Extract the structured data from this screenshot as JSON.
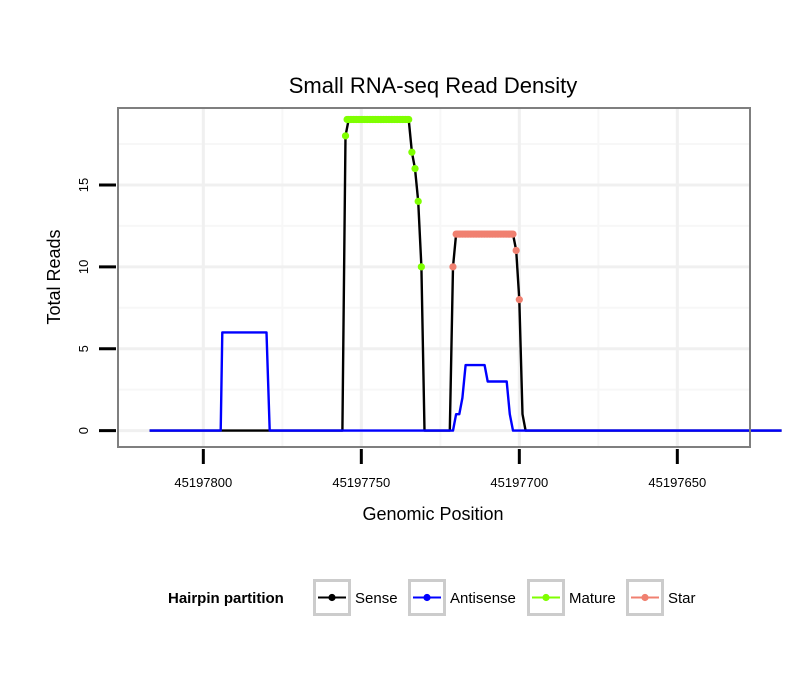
{
  "chart_data": {
    "type": "line",
    "title": "Small RNA-seq Read Density",
    "xlabel": "Genomic Position",
    "ylabel": "Total Reads",
    "x_reversed": true,
    "xlim": [
      45197827,
      45197627
    ],
    "ylim": [
      -1,
      19.7
    ],
    "x_ticks": [
      45197800,
      45197750,
      45197700,
      45197650
    ],
    "x_tick_labels": [
      "45197800",
      "45197750",
      "45197700",
      "45197650"
    ],
    "y_ticks": [
      0,
      5,
      10,
      15
    ],
    "y_tick_labels": [
      "0",
      "5",
      "10",
      "15"
    ],
    "legend": {
      "title": "Hairpin partition",
      "position": "bottom",
      "entries": [
        {
          "name": "Sense",
          "color": "#000000"
        },
        {
          "name": "Antisense",
          "color": "#0000ff"
        },
        {
          "name": "Mature",
          "color": "#7fff00"
        },
        {
          "name": "Star",
          "color": "#f08070"
        }
      ]
    },
    "series": [
      {
        "name": "Sense",
        "color": "#000000",
        "style": "line",
        "x": [
          45197817,
          45197756,
          45197755,
          45197754,
          45197735,
          45197734,
          45197733,
          45197732,
          45197731,
          45197730,
          45197729,
          45197722,
          45197721,
          45197720,
          45197719,
          45197718,
          45197717,
          45197717.5,
          45197702,
          45197701,
          45197700,
          45197699,
          45197698,
          45197697,
          45197617
        ],
        "y": [
          0,
          0,
          18,
          19,
          19,
          17,
          16,
          14,
          10,
          0,
          0,
          0,
          10,
          12,
          12,
          12,
          12,
          12,
          12,
          11,
          8,
          1,
          0,
          0,
          0
        ]
      },
      {
        "name": "Antisense",
        "color": "#0000ff",
        "style": "line",
        "x": [
          45197817,
          45197794.5,
          45197794,
          45197780,
          45197779,
          45197721,
          45197720,
          45197719,
          45197718,
          45197717,
          45197711,
          45197710,
          45197705,
          45197704,
          45197703,
          45197702,
          45197617
        ],
        "y": [
          0,
          0,
          6,
          6,
          0,
          0,
          1,
          1,
          2,
          4,
          4,
          3,
          3,
          3,
          1,
          0,
          0
        ]
      },
      {
        "name": "Mature",
        "color": "#7fff00",
        "style": "points",
        "x": [
          45197755,
          45197754.5,
          45197754,
          45197753.5,
          45197753,
          45197752.5,
          45197752,
          45197751.5,
          45197751,
          45197750.5,
          45197750,
          45197749.5,
          45197749,
          45197748.5,
          45197748,
          45197747.5,
          45197747,
          45197746.5,
          45197746,
          45197745.5,
          45197745,
          45197744.5,
          45197744,
          45197743.5,
          45197743,
          45197742.5,
          45197742,
          45197741.5,
          45197741,
          45197740.5,
          45197740,
          45197739.5,
          45197739,
          45197738.5,
          45197738,
          45197737.5,
          45197737,
          45197736.5,
          45197736,
          45197735.5,
          45197735,
          45197734,
          45197733,
          45197732,
          45197731
        ],
        "y": [
          18,
          19,
          19,
          19,
          19,
          19,
          19,
          19,
          19,
          19,
          19,
          19,
          19,
          19,
          19,
          19,
          19,
          19,
          19,
          19,
          19,
          19,
          19,
          19,
          19,
          19,
          19,
          19,
          19,
          19,
          19,
          19,
          19,
          19,
          19,
          19,
          19,
          19,
          19,
          19,
          19,
          17,
          16,
          14,
          10
        ]
      },
      {
        "name": "Star",
        "color": "#f08070",
        "style": "points",
        "x": [
          45197721,
          45197720,
          45197719.5,
          45197719,
          45197718.5,
          45197718,
          45197717.5,
          45197717,
          45197716.5,
          45197716,
          45197715.5,
          45197715,
          45197714.5,
          45197714,
          45197713.5,
          45197713,
          45197712.5,
          45197712,
          45197711.5,
          45197711,
          45197710.5,
          45197710,
          45197709.5,
          45197709,
          45197708.5,
          45197708,
          45197707.5,
          45197707,
          45197706.5,
          45197706,
          45197705.5,
          45197705,
          45197704.5,
          45197704,
          45197703.5,
          45197703,
          45197702.5,
          45197702,
          45197701,
          45197700
        ],
        "y": [
          10,
          12,
          12,
          12,
          12,
          12,
          12,
          12,
          12,
          12,
          12,
          12,
          12,
          12,
          12,
          12,
          12,
          12,
          12,
          12,
          12,
          12,
          12,
          12,
          12,
          12,
          12,
          12,
          12,
          12,
          12,
          12,
          12,
          12,
          12,
          12,
          12,
          12,
          11,
          8
        ]
      }
    ]
  }
}
